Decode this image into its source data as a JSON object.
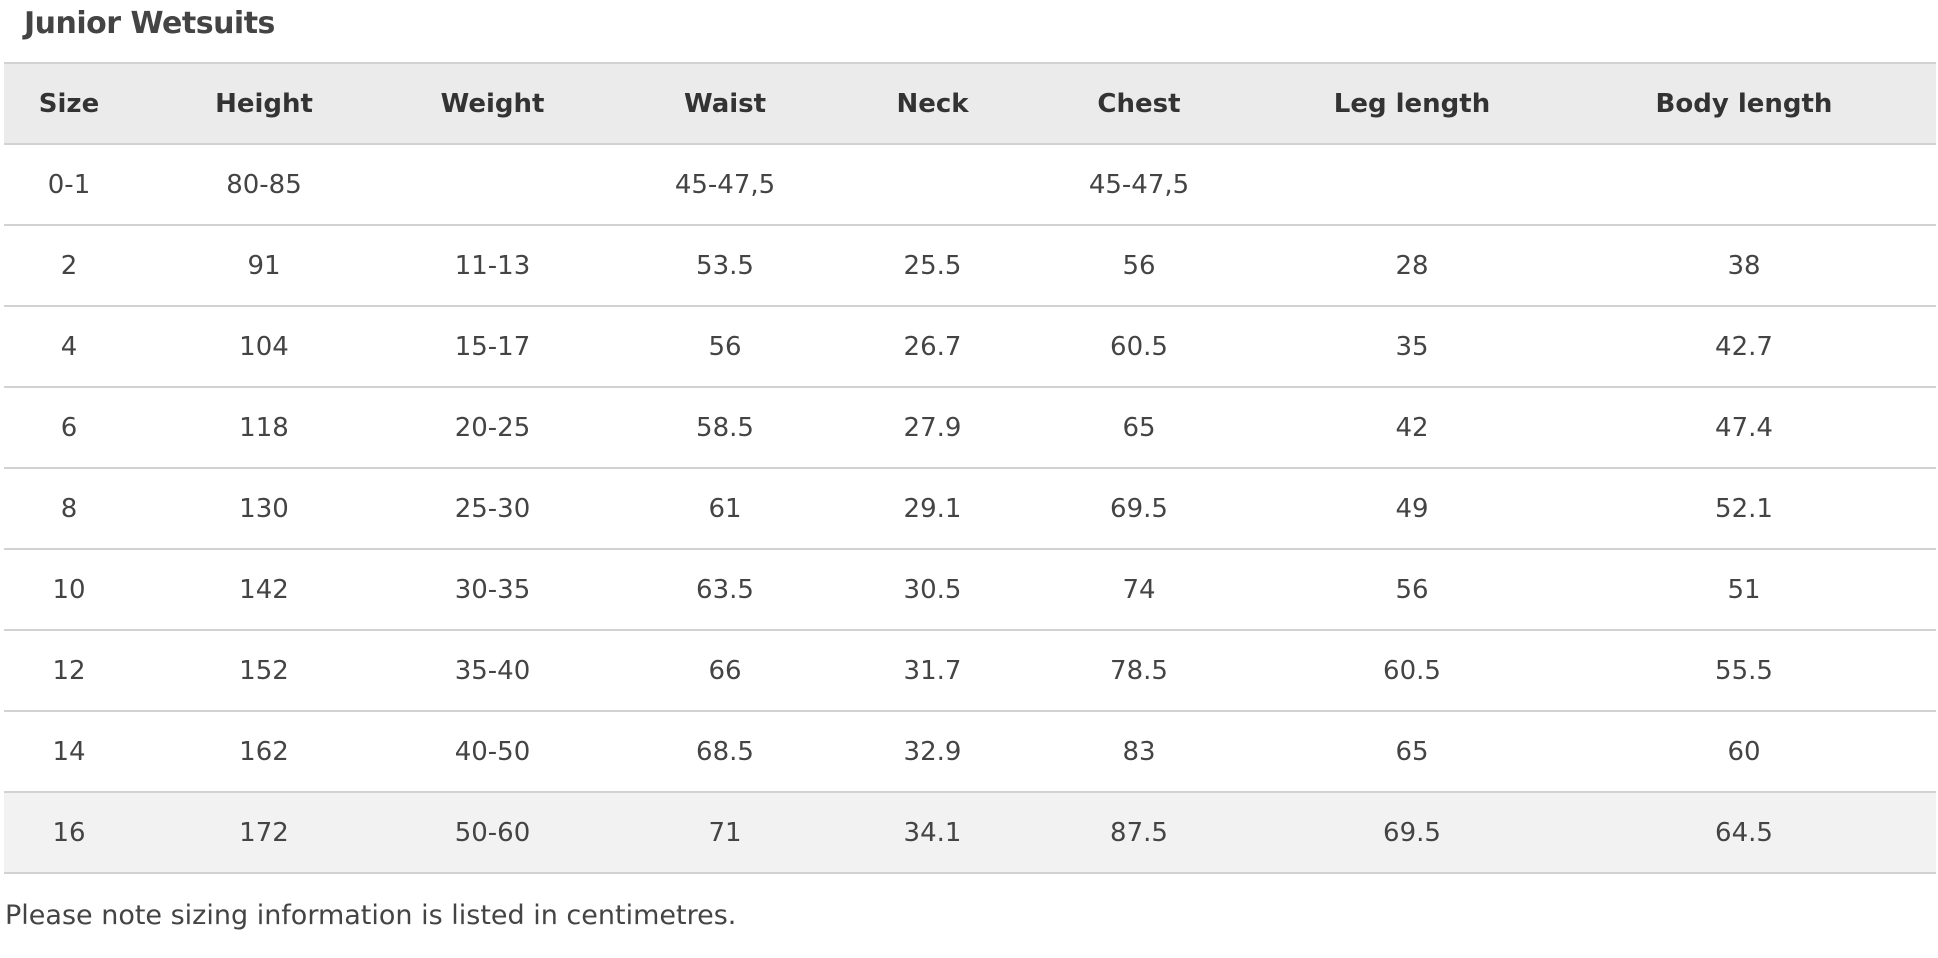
{
  "title": "Junior Wetsuits",
  "columns": [
    "Size",
    "Height",
    "Weight",
    "Waist",
    "Neck",
    "Chest",
    "Leg length",
    "Body length"
  ],
  "rows": [
    [
      "0-1",
      "80-85",
      "",
      "45-47,5",
      "",
      "45-47,5",
      "",
      ""
    ],
    [
      "2",
      "91",
      "11-13",
      "53.5",
      "25.5",
      "56",
      "28",
      "38"
    ],
    [
      "4",
      "104",
      "15-17",
      "56",
      "26.7",
      "60.5",
      "35",
      "42.7"
    ],
    [
      "6",
      "118",
      "20-25",
      "58.5",
      "27.9",
      "65",
      "42",
      "47.4"
    ],
    [
      "8",
      "130",
      "25-30",
      "61",
      "29.1",
      "69.5",
      "49",
      "52.1"
    ],
    [
      "10",
      "142",
      "30-35",
      "63.5",
      "30.5",
      "74",
      "56",
      "51"
    ],
    [
      "12",
      "152",
      "35-40",
      "66",
      "31.7",
      "78.5",
      "60.5",
      "55.5"
    ],
    [
      "14",
      "162",
      "40-50",
      "68.5",
      "32.9",
      "83",
      "65",
      "60"
    ],
    [
      "16",
      "172",
      "50-60",
      "71",
      "34.1",
      "87.5",
      "69.5",
      "64.5"
    ]
  ],
  "footnote": "Please note sizing information is listed in centimetres.",
  "colors": {
    "header_bg": "#ebebeb",
    "shaded_row_bg": "#f2f2f2",
    "border": "#d2d2d2",
    "text": "#444444"
  }
}
